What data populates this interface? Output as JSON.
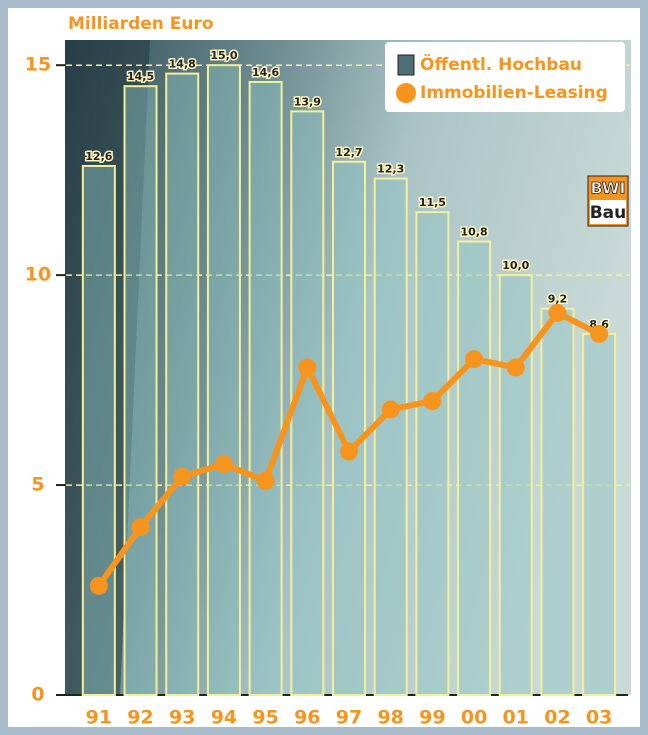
{
  "chart_data": {
    "type": "bar_line",
    "y_axis_label": "Milliarden Euro",
    "categories": [
      "91",
      "92",
      "93",
      "94",
      "95",
      "96",
      "97",
      "98",
      "99",
      "00",
      "01",
      "02",
      "03"
    ],
    "series": [
      {
        "name": "Öffentl. Hochbau",
        "type": "bar",
        "color": "#8fc3c4",
        "values": [
          12.6,
          14.5,
          14.8,
          15.0,
          14.6,
          13.9,
          12.7,
          12.3,
          11.5,
          10.8,
          10.0,
          9.2,
          8.6
        ],
        "value_labels": [
          "12,6",
          "14,5",
          "14,8",
          "15,0",
          "14,6",
          "13,9",
          "12,7",
          "12,3",
          "11,5",
          "10,8",
          "10,0",
          "9,2",
          "8,6"
        ]
      },
      {
        "name": "Immobilien-Leasing",
        "type": "line",
        "color": "#f7941d",
        "values": [
          2.6,
          4.0,
          5.2,
          5.5,
          5.1,
          7.8,
          5.8,
          6.8,
          7.0,
          8.0,
          7.8,
          9.1,
          8.6
        ]
      }
    ],
    "ylim": [
      0,
      15.6
    ],
    "yticks": [
      0,
      5,
      10,
      15
    ],
    "grid": true
  },
  "logo": {
    "line1": "BWI",
    "line2": "Bau"
  }
}
